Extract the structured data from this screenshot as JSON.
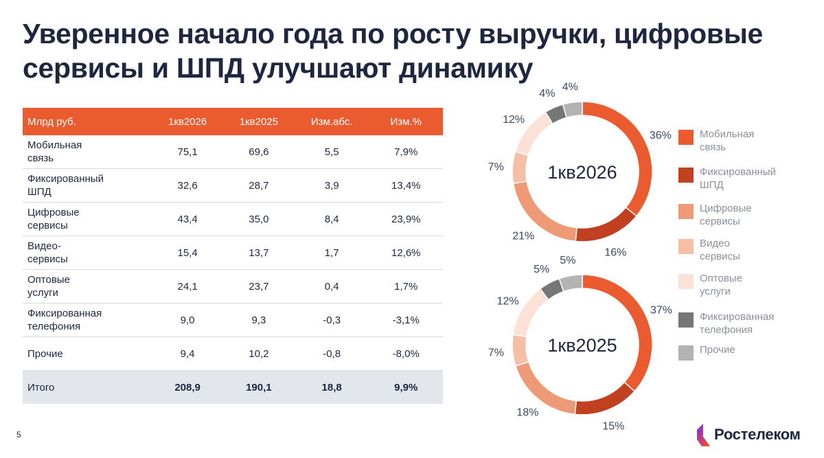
{
  "title": "Уверенное начало года по росту выручки, цифровые сервисы и ШПД улучшают динамику",
  "table": {
    "headers": [
      "Млрд руб.",
      "1кв2026",
      "1кв2025",
      "Изм.абс.",
      "Изм.%"
    ],
    "rows": [
      {
        "label_l1": "Мобильная",
        "label_l2": "связь",
        "c1": "75,1",
        "c2": "69,6",
        "c3": "5,5",
        "c4": "7,9%"
      },
      {
        "label_l1": "Фиксированный",
        "label_l2": "ШПД",
        "c1": "32,6",
        "c2": "28,7",
        "c3": "3,9",
        "c4": "13,4%"
      },
      {
        "label_l1": "Цифровые",
        "label_l2": "сервисы",
        "c1": "43,4",
        "c2": "35,0",
        "c3": "8,4",
        "c4": "23,9%"
      },
      {
        "label_l1": "Видео-",
        "label_l2": "сервисы",
        "c1": "15,4",
        "c2": "13,7",
        "c3": "1,7",
        "c4": "12,6%"
      },
      {
        "label_l1": "Оптовые",
        "label_l2": "услуги",
        "c1": "24,1",
        "c2": "23,7",
        "c3": "0,4",
        "c4": "1,7%"
      },
      {
        "label_l1": "Фиксированная",
        "label_l2": "телефония",
        "c1": "9,0",
        "c2": "9,3",
        "c3": "-0,3",
        "c4": "-3,1%"
      },
      {
        "label_l1": "Прочие",
        "label_l2": "",
        "c1": "9,4",
        "c2": "10,2",
        "c3": "-0,8",
        "c4": "-8,0%"
      }
    ],
    "total": {
      "label": "Итого",
      "c1": "208,9",
      "c2": "190,1",
      "c3": "18,8",
      "c4": "9,9%"
    }
  },
  "chart_data": [
    {
      "type": "pie",
      "title": "1кв2026",
      "categories": [
        "Мобильная связь",
        "Фиксированный ШПД",
        "Цифровые сервисы",
        "Видео сервисы",
        "Оптовые услуги",
        "Фиксированная телефония",
        "Прочие"
      ],
      "values": [
        75.1,
        32.6,
        43.4,
        15.4,
        24.1,
        9.0,
        9.4
      ],
      "labels": [
        "36%",
        "16%",
        "21%",
        "7%",
        "12%",
        "4%",
        "4%"
      ]
    },
    {
      "type": "pie",
      "title": "1кв2025",
      "categories": [
        "Мобильная связь",
        "Фиксированный ШПД",
        "Цифровые сервисы",
        "Видео сервисы",
        "Оптовые услуги",
        "Фиксированная телефония",
        "Прочие"
      ],
      "values": [
        69.6,
        28.7,
        35.0,
        13.7,
        23.7,
        9.3,
        10.2
      ],
      "labels": [
        "37%",
        "15%",
        "18%",
        "7%",
        "12%",
        "5%",
        "5%"
      ]
    }
  ],
  "colors": [
    "#ea5b30",
    "#c0401f",
    "#ef9a76",
    "#f5bfa6",
    "#fbe1d6",
    "#767676",
    "#b3b3b3"
  ],
  "legend": [
    {
      "l1": "Мобильная",
      "l2": "связь"
    },
    {
      "l1": "Фиксированный",
      "l2": "ШПД"
    },
    {
      "l1": "Цифровые",
      "l2": "сервисы"
    },
    {
      "l1": "Видео",
      "l2": "сервисы"
    },
    {
      "l1": "Оптовые",
      "l2": "услуги"
    },
    {
      "l1": "Фиксированная",
      "l2": "телефония"
    },
    {
      "l1": "Прочие",
      "l2": ""
    }
  ],
  "page_number": "5",
  "logo": {
    "text": "Ростелеком",
    "icon": "rostelecom-logo-icon"
  }
}
